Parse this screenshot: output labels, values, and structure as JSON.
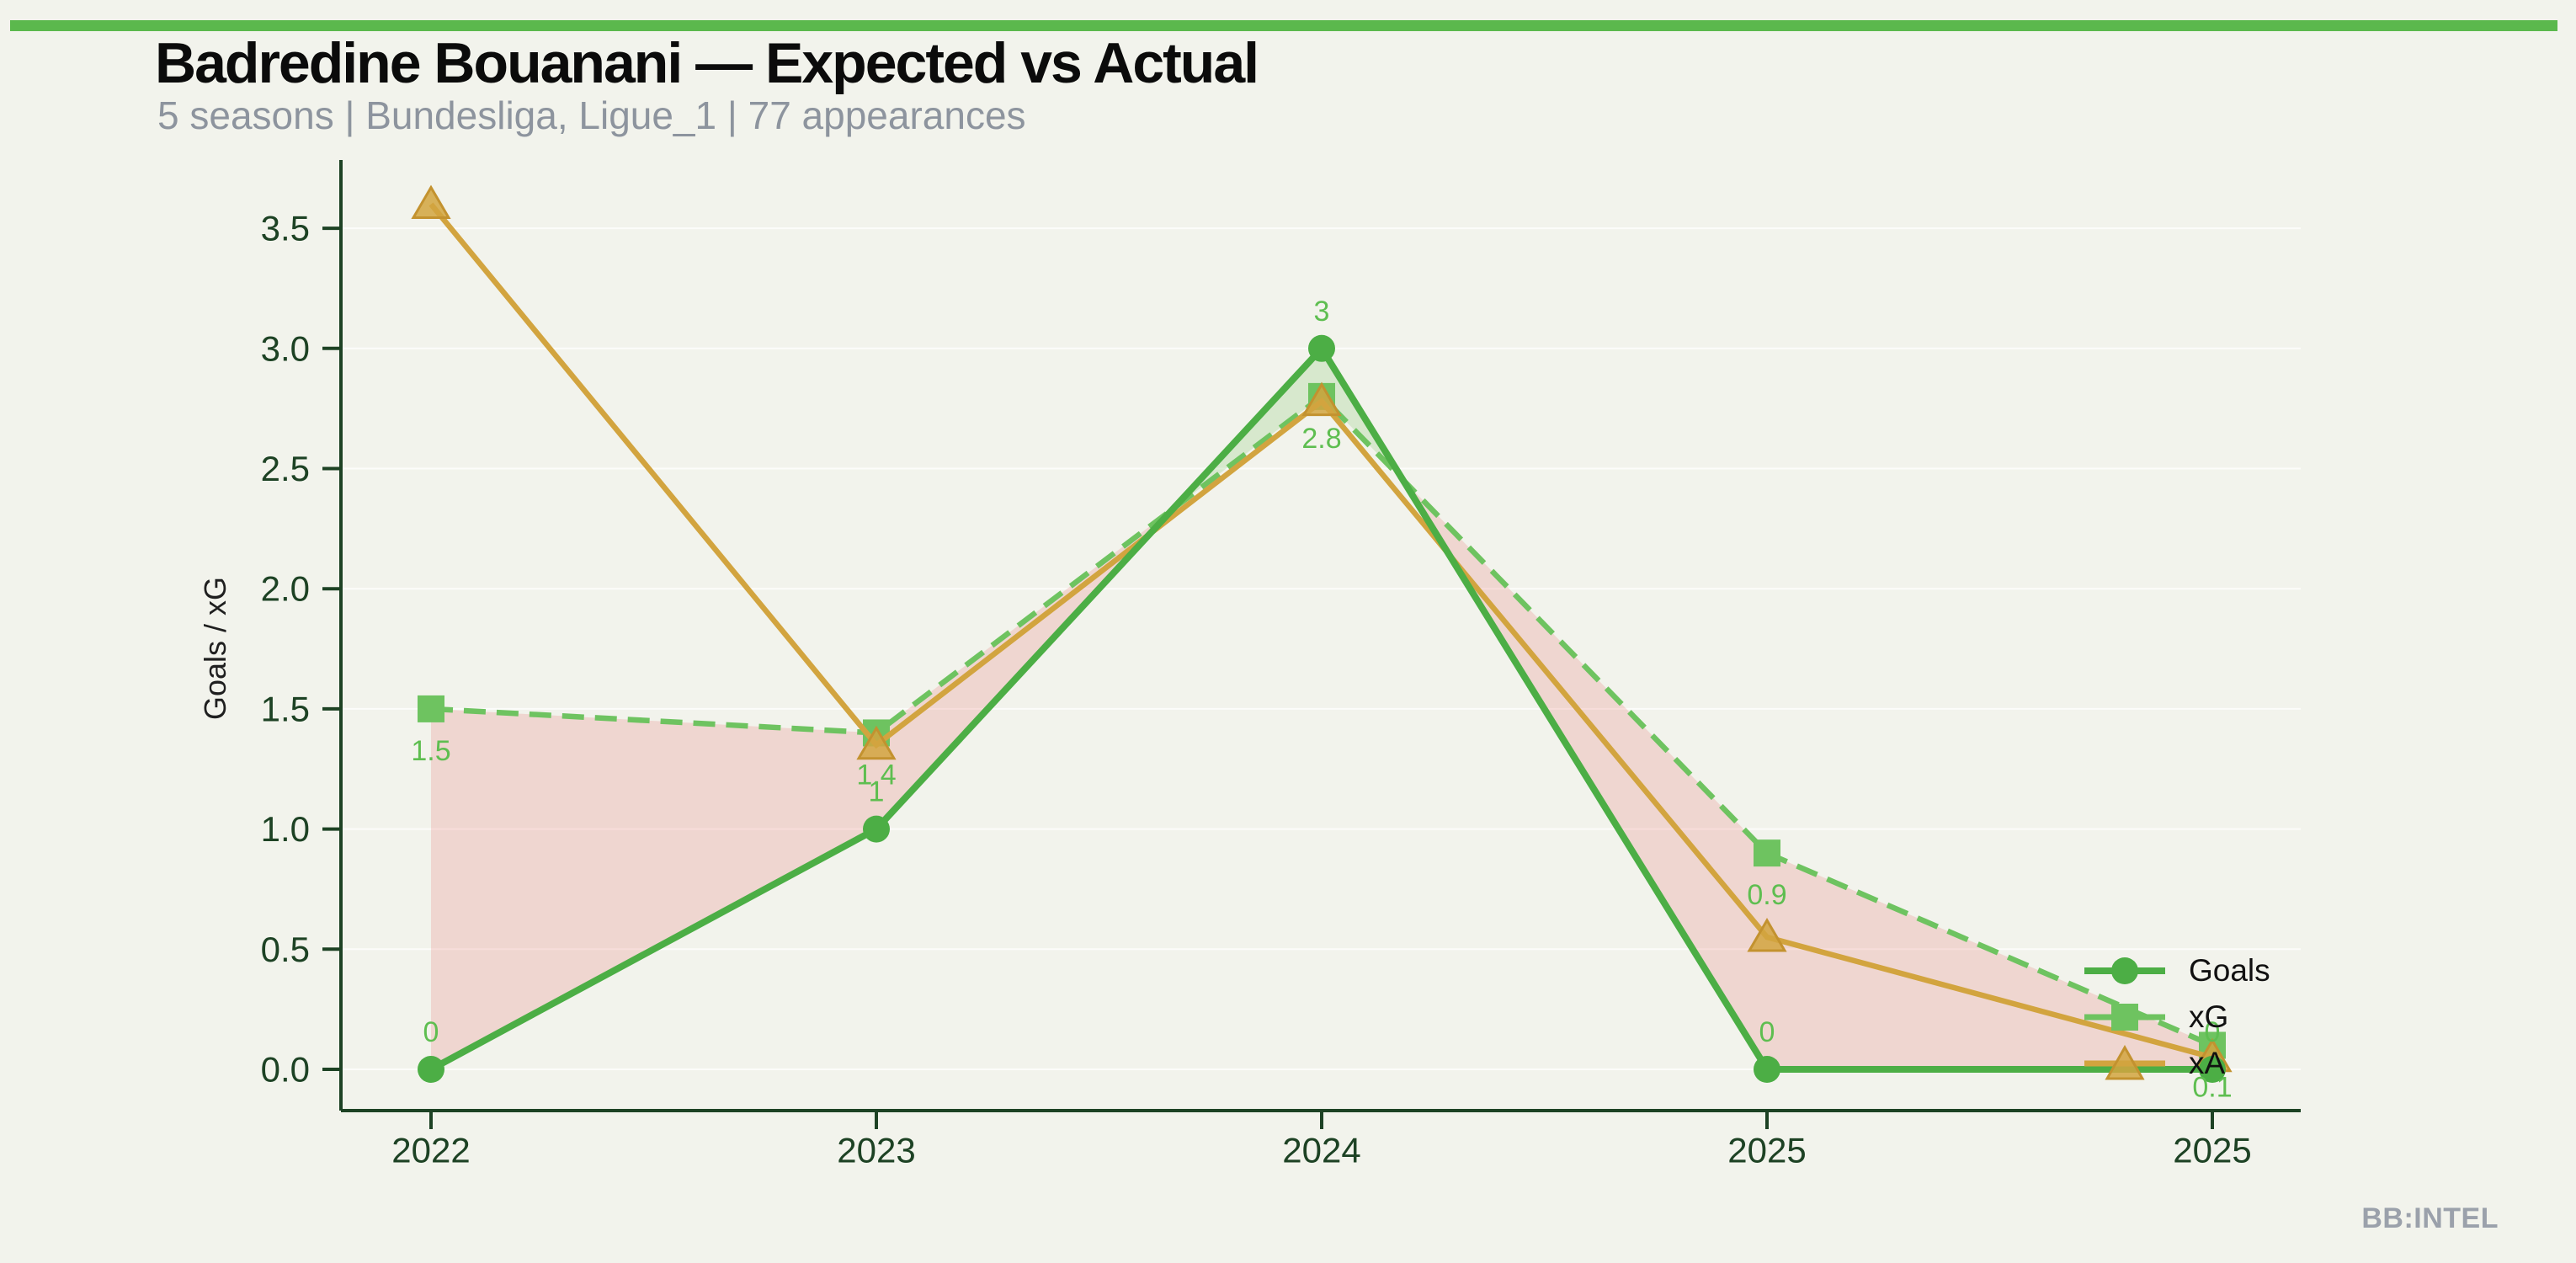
{
  "page": {
    "title": "Badredine Bouanani — Expected vs Actual",
    "subtitle": "5 seasons | Bundesliga, Ligue_1 | 77 appearances",
    "watermark": "BB:INTEL"
  },
  "colors": {
    "background": "#f2f3ec",
    "top_bar": "#5bb84d",
    "title_text": "#0b0b0b",
    "subtitle_text": "#8d949e",
    "axis": "#1d4224",
    "tick_text": "#1d4224",
    "ylabel_text": "#1f1f1f",
    "goals": "#4cae45",
    "xg": "#6ec360",
    "xa": "#d2a43f",
    "xa_edge": "#c3922f",
    "point_label_text": "#5ebe50",
    "fill_deficit": "rgba(233,128,122,0.25)",
    "fill_surplus": "rgba(118,196,96,0.22)",
    "gridline": "rgba(255,255,255,0.75)",
    "legend_text": "#111111",
    "watermark_text": "#9ba1ab"
  },
  "chart_data": {
    "type": "line",
    "title": "Badredine Bouanani — Expected vs Actual",
    "xlabel": "",
    "ylabel": "Goals / xG",
    "categories": [
      "2022",
      "2023",
      "2024",
      "2025",
      "2025"
    ],
    "ylim": [
      -0.17,
      3.78
    ],
    "yticks": [
      0.0,
      0.5,
      1.0,
      1.5,
      2.0,
      2.5,
      3.0,
      3.5
    ],
    "ytick_labels": [
      "0.0",
      "0.5",
      "1.0",
      "1.5",
      "2.0",
      "2.5",
      "3.0",
      "3.5"
    ],
    "grid": "horizontal",
    "legend_position": "right-inside",
    "series": [
      {
        "name": "Goals",
        "marker": "circle",
        "line_style": "solid",
        "values": [
          0,
          1,
          3,
          0,
          0
        ],
        "point_labels": [
          "0",
          "1",
          "3",
          "0",
          "0"
        ]
      },
      {
        "name": "xG",
        "marker": "square",
        "line_style": "dashed",
        "values": [
          1.5,
          1.4,
          2.8,
          0.9,
          0.1
        ],
        "point_labels": [
          "1.5",
          "1.4",
          "2.8",
          "0.9",
          "0.1"
        ]
      },
      {
        "name": "xA",
        "marker": "triangle",
        "line_style": "solid",
        "values": [
          3.6,
          1.35,
          2.78,
          0.55,
          0.05
        ],
        "point_labels": []
      }
    ],
    "fills": [
      {
        "between": [
          "xG",
          "Goals"
        ],
        "when": "xG > Goals",
        "color_key": "fill_deficit"
      },
      {
        "between": [
          "Goals",
          "xG"
        ],
        "when": "Goals > xG",
        "color_key": "fill_surplus"
      }
    ]
  }
}
